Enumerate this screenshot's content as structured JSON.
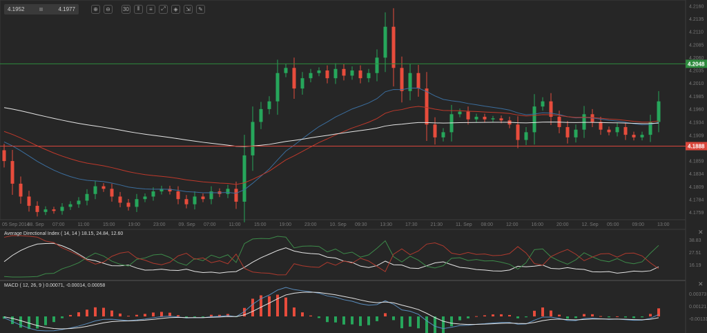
{
  "toolbar": {
    "bid": "4.1952",
    "ask": "4.1977",
    "buttons": [
      {
        "name": "zoom-in-icon",
        "glyph": "⊕"
      },
      {
        "name": "zoom-out-icon",
        "glyph": "⊖"
      },
      {
        "name": "timeframe-icon",
        "glyph": "30"
      },
      {
        "name": "chart-type-icon",
        "glyph": "⫴"
      },
      {
        "name": "indicators-icon",
        "glyph": "≡"
      },
      {
        "name": "drawing-icon",
        "glyph": "⤢"
      },
      {
        "name": "template-icon",
        "glyph": "◈"
      },
      {
        "name": "export-icon",
        "glyph": "⇲"
      },
      {
        "name": "pen-icon",
        "glyph": "✎"
      }
    ]
  },
  "colors": {
    "up": "#26a65b",
    "down": "#e74c3c",
    "ema_fast": "#3b6e9e",
    "ema_mid": "#c0392b",
    "ema_slow": "#e6e6e6",
    "background": "#262626",
    "grid": "#444444"
  },
  "chart_data": [
    {
      "type": "candlestick",
      "title": "",
      "ylim": [
        4.1745,
        4.2172
      ],
      "yticks": [
        "4.2160",
        "4.2135",
        "4.2110",
        "4.2085",
        "4.2060",
        "4.2035",
        "4.2010",
        "4.1985",
        "4.1960",
        "4.1934",
        "4.1909",
        "4.1859",
        "4.1834",
        "4.1809",
        "4.1784",
        "4.1759"
      ],
      "xticks": [
        "05 Sep 2014",
        "08. Sep",
        "07:00",
        "11:00",
        "15:00",
        "19:00",
        "23:00",
        "09. Sep",
        "07:00",
        "11:00",
        "15:00",
        "19:00",
        "23:00",
        "10. Sep",
        "09:30",
        "13:30",
        "17:30",
        "21:30",
        "11. Sep",
        "08:00",
        "12:00",
        "16:00",
        "20:00",
        "12. Sep",
        "05:00",
        "09:00",
        "13:00"
      ],
      "first_open": 4.188,
      "closes": [
        4.1859,
        4.1815,
        4.179,
        4.1772,
        4.176,
        4.1765,
        4.1762,
        4.177,
        4.1775,
        4.1782,
        4.1795,
        4.181,
        4.1805,
        4.179,
        4.1778,
        4.177,
        4.1785,
        4.179,
        4.18,
        4.1805,
        4.18,
        4.1785,
        4.1775,
        4.179,
        4.1785,
        4.18,
        4.1795,
        4.1805,
        4.178,
        4.187,
        4.1935,
        4.196,
        4.1975,
        4.203,
        4.204,
        4.2,
        4.202,
        4.203,
        4.2035,
        4.202,
        4.2038,
        4.2025,
        4.2035,
        4.202,
        4.203,
        4.206,
        4.212,
        4.204,
        4.1995,
        4.203,
        4.2,
        4.193,
        4.1905,
        4.1915,
        4.195,
        4.1955,
        4.194,
        4.1945,
        4.194,
        4.1942,
        4.1938,
        4.193,
        4.19,
        4.1915,
        4.1965,
        4.1975,
        4.1945,
        4.1925,
        4.1905,
        4.192,
        4.195,
        4.1935,
        4.192,
        4.1915,
        4.1925,
        4.191,
        4.1905,
        4.191,
        4.1935,
        4.1975
      ],
      "moving_averages": [
        {
          "period": 20,
          "color": "#3b6e9e"
        },
        {
          "period": 34,
          "color": "#c0392b"
        },
        {
          "period": 100,
          "color": "#e6e6e6"
        }
      ],
      "horizontal_lines": [
        {
          "value": "4.2048",
          "color": "#2e8b3e"
        },
        {
          "value": "4.1888",
          "color": "#d9463b"
        }
      ]
    },
    {
      "type": "line",
      "title": "Average Directional Index ( 14, 14 ) 18.15, 24.84, 12.60",
      "yticks": [
        "38.83",
        "27.51",
        "16.19"
      ],
      "series": [
        {
          "key": "ADX",
          "color": "#e6e6e6"
        },
        {
          "key": "+DI",
          "color": "#3d8b4a"
        },
        {
          "key": "-DI",
          "color": "#b03a2e"
        }
      ]
    },
    {
      "type": "bar",
      "title": "MACD ( 12, 26, 9 ) 0.00071, -0.00014, 0.00058",
      "yticks": [
        "0.00373",
        "0.00121",
        "-0.00131"
      ]
    }
  ]
}
